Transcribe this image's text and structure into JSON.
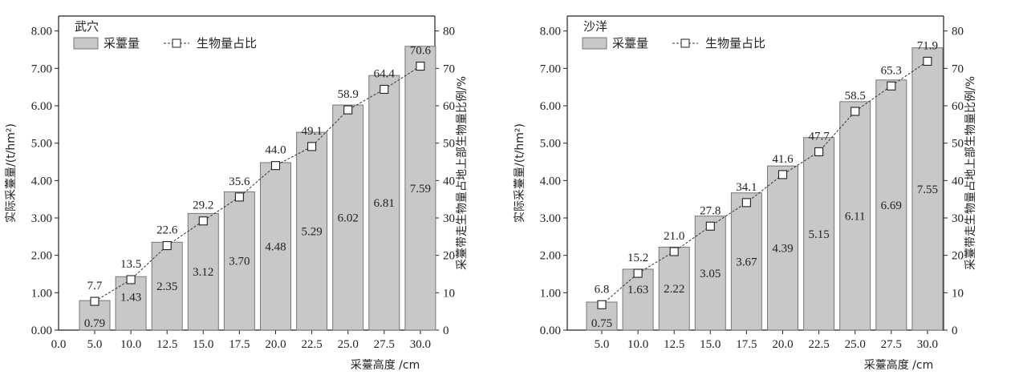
{
  "chart_data": [
    {
      "type": "bar",
      "title": "武穴",
      "categories": [
        "5.0",
        "10.0",
        "12.5",
        "15.0",
        "17.5",
        "20.0",
        "22.5",
        "25.0",
        "27.5",
        "30.0"
      ],
      "series": [
        {
          "name": "采薹量",
          "type": "bar",
          "axis": "left",
          "values": [
            0.79,
            1.43,
            2.35,
            3.12,
            3.7,
            4.48,
            5.29,
            6.02,
            6.81,
            7.59
          ],
          "labels": [
            "0.79",
            "1.43",
            "2.35",
            "3.12",
            "3.70",
            "4.48",
            "5.29",
            "6.02",
            "6.81",
            "7.59"
          ]
        },
        {
          "name": "生物量占比",
          "type": "line",
          "axis": "right",
          "values": [
            7.7,
            13.5,
            22.6,
            29.2,
            35.6,
            44.0,
            49.1,
            58.9,
            64.4,
            70.6
          ],
          "labels": [
            "7.7",
            "13.5",
            "22.6",
            "29.2",
            "35.6",
            "44.0",
            "49.1",
            "58.9",
            "64.4",
            "70.6"
          ]
        }
      ],
      "ylabel": "实际采薹量/(t/hm²)",
      "ylabel_right": "采薹带走生物量占地上部生物量比例/%",
      "xlabel": "",
      "ylim": [
        0,
        8.4
      ],
      "ylim_right": [
        0,
        80
      ],
      "yticks": [
        "0.00",
        "1.00",
        "2.00",
        "3.00",
        "4.00",
        "5.00",
        "6.00",
        "7.00",
        "8.00"
      ],
      "yticks_right": [
        "0",
        "10",
        "20",
        "30",
        "40",
        "50",
        "60",
        "70",
        "80"
      ],
      "x_origin_label": "0.0",
      "legend": "top-left",
      "grid": false,
      "colors": {
        "bar": "#c8c8c8",
        "bar_edge": "#777777",
        "line": "#333333"
      }
    },
    {
      "type": "bar",
      "title": "沙洋",
      "categories": [
        "5.0",
        "10.0",
        "12.5",
        "15.0",
        "17.5",
        "20.0",
        "22.5",
        "25.0",
        "27.5",
        "30.0"
      ],
      "series": [
        {
          "name": "采薹量",
          "type": "bar",
          "axis": "left",
          "values": [
            0.75,
            1.63,
            2.22,
            3.05,
            3.67,
            4.39,
            5.15,
            6.11,
            6.69,
            7.55
          ],
          "labels": [
            "0.75",
            "1.63",
            "2.22",
            "3.05",
            "3.67",
            "4.39",
            "5.15",
            "6.11",
            "6.69",
            "7.55"
          ]
        },
        {
          "name": "生物量占比",
          "type": "line",
          "axis": "right",
          "values": [
            6.8,
            15.2,
            21.0,
            27.8,
            34.1,
            41.6,
            47.7,
            58.5,
            65.3,
            71.9
          ],
          "labels": [
            "6.8",
            "15.2",
            "21.0",
            "27.8",
            "34.1",
            "41.6",
            "47.7",
            "58.5",
            "65.3",
            "71.9"
          ]
        }
      ],
      "ylabel": "实际采薹量/(t/hm²)",
      "ylabel_right": "采薹带走生物量占地上部生物量比例/%",
      "xlabel": "采薹高度 /cm",
      "ylim": [
        0,
        8.4
      ],
      "ylim_right": [
        0,
        80
      ],
      "yticks": [
        "0.00",
        "1.00",
        "2.00",
        "3.00",
        "4.00",
        "5.00",
        "6.00",
        "7.00",
        "8.00"
      ],
      "yticks_right": [
        "0",
        "10",
        "20",
        "30",
        "40",
        "50",
        "60",
        "70",
        "80"
      ],
      "legend": "top-left",
      "grid": false,
      "colors": {
        "bar": "#c8c8c8",
        "bar_edge": "#777777",
        "line": "#333333"
      }
    }
  ],
  "shared": {
    "xlabel_left": "采薹高度 /cm"
  }
}
